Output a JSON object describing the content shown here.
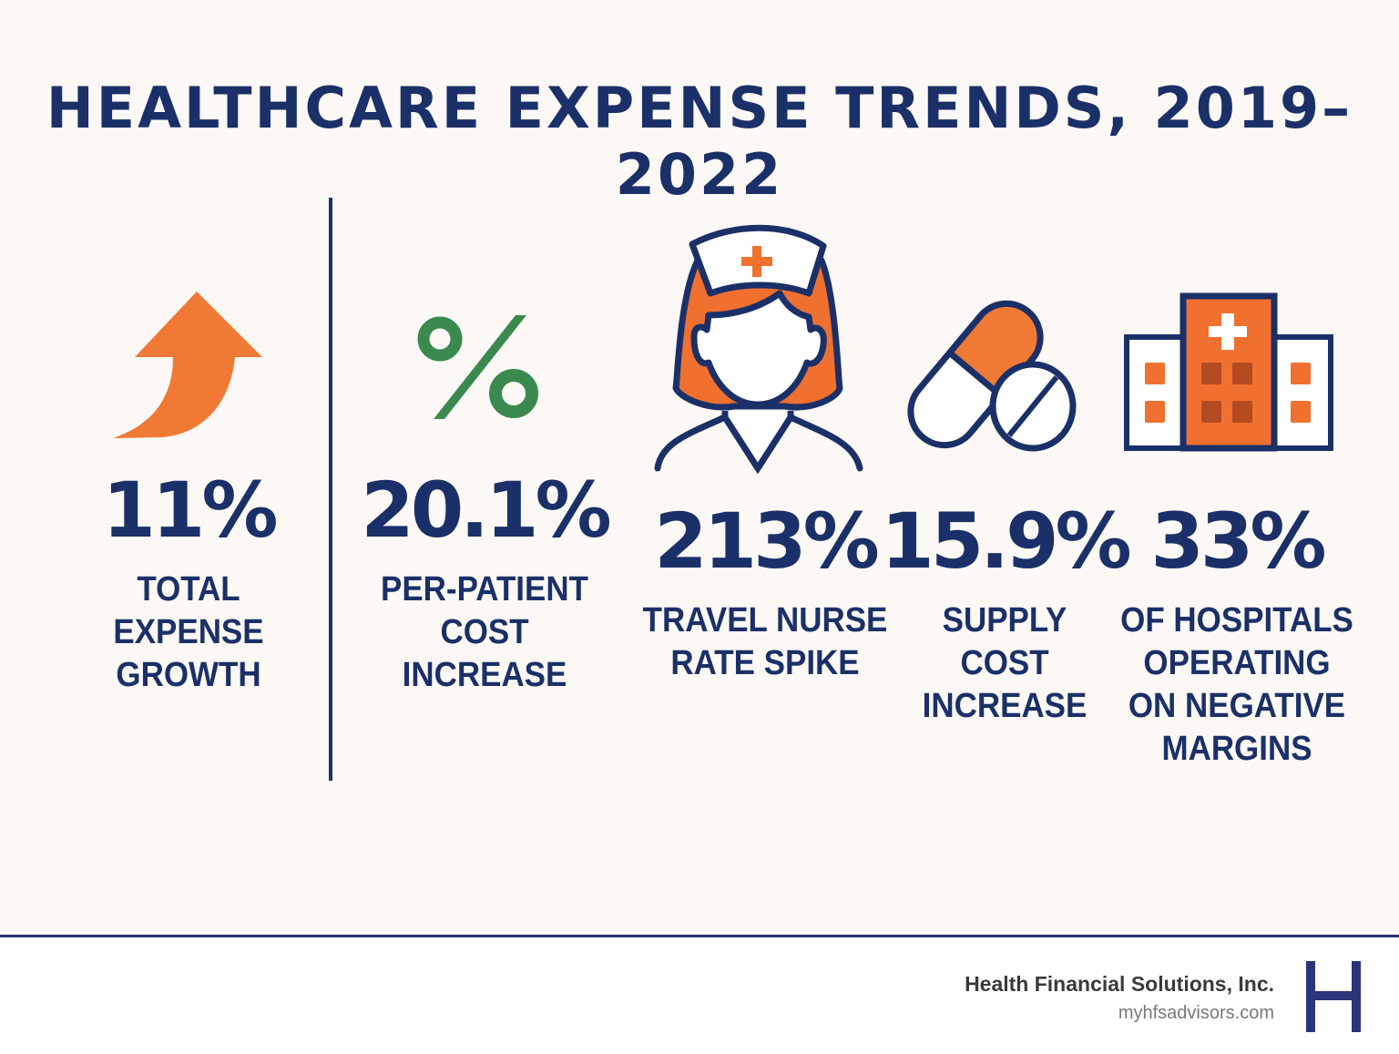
{
  "title": "HEALTHCARE EXPENSE TRENDS, 2019–2022",
  "colors": {
    "navy": "#1b3068",
    "orange": "#f07030",
    "green": "#3a8a50",
    "background": "#fbf8f5"
  },
  "stats": [
    {
      "value": "11%",
      "label": [
        "TOTAL",
        "EXPENSE",
        "GROWTH"
      ],
      "icon": "arrow-up-icon"
    },
    {
      "value": "20.1%",
      "label": [
        "PER-PATIENT",
        "COST",
        "INCREASE"
      ],
      "icon": "percent-icon"
    },
    {
      "value": "213%",
      "label": [
        "TRAVEL NURSE",
        "RATE SPIKE"
      ],
      "icon": "nurse-icon"
    },
    {
      "value": "15.9%",
      "label": [
        "SUPPLY",
        "COST",
        "INCREASE"
      ],
      "icon": "pills-icon"
    },
    {
      "value": "33%",
      "label": [
        "OF HOSPITALS",
        "OPERATING",
        "ON NEGATIVE",
        "MARGINS"
      ],
      "icon": "hospital-icon"
    }
  ],
  "footer": {
    "company": "Health Financial Solutions, Inc.",
    "website": "myhfsadvisors.com",
    "logo_letter": "H"
  }
}
